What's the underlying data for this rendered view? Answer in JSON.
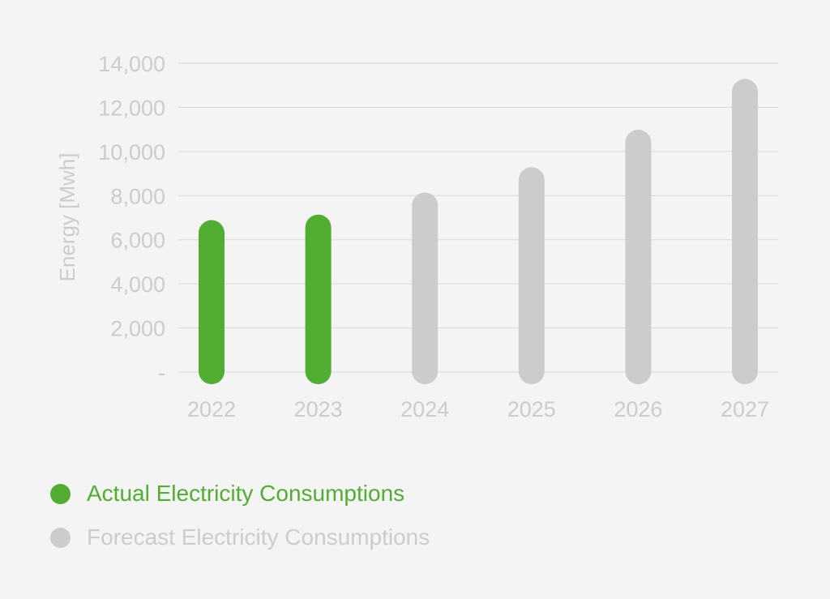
{
  "chart_data": {
    "type": "bar",
    "categories": [
      "2022",
      "2023",
      "2024",
      "2025",
      "2026",
      "2027"
    ],
    "series": [
      {
        "name": "Actual Electricity Consumptions",
        "values": [
          6300,
          6550,
          null,
          null,
          null,
          null
        ],
        "color": "#52ad33"
      },
      {
        "name": "Forecast Electricity Consumptions",
        "values": [
          null,
          null,
          7550,
          8700,
          10400,
          12700
        ],
        "color": "#cccccc"
      }
    ],
    "title": "",
    "xlabel": "",
    "ylabel": "Energy [Mwh]",
    "ylim": [
      0,
      14000
    ],
    "yticks": [
      0,
      2000,
      4000,
      6000,
      8000,
      10000,
      12000,
      14000
    ],
    "ytick_labels": [
      "-",
      "2,000",
      "4,000",
      "6,000",
      "8,000",
      "10,000",
      "12,000",
      "14,000"
    ],
    "grid": true,
    "legend_position": "bottom-left"
  },
  "legend": {
    "actual_label": "Actual Electricity Consumptions",
    "forecast_label": "Forecast Electricity Consumptions"
  },
  "colors": {
    "background": "#f4f4f4",
    "actual": "#52ad33",
    "forecast": "#cccccc",
    "grid": "#d9d9d9",
    "text": "#cccccc"
  }
}
